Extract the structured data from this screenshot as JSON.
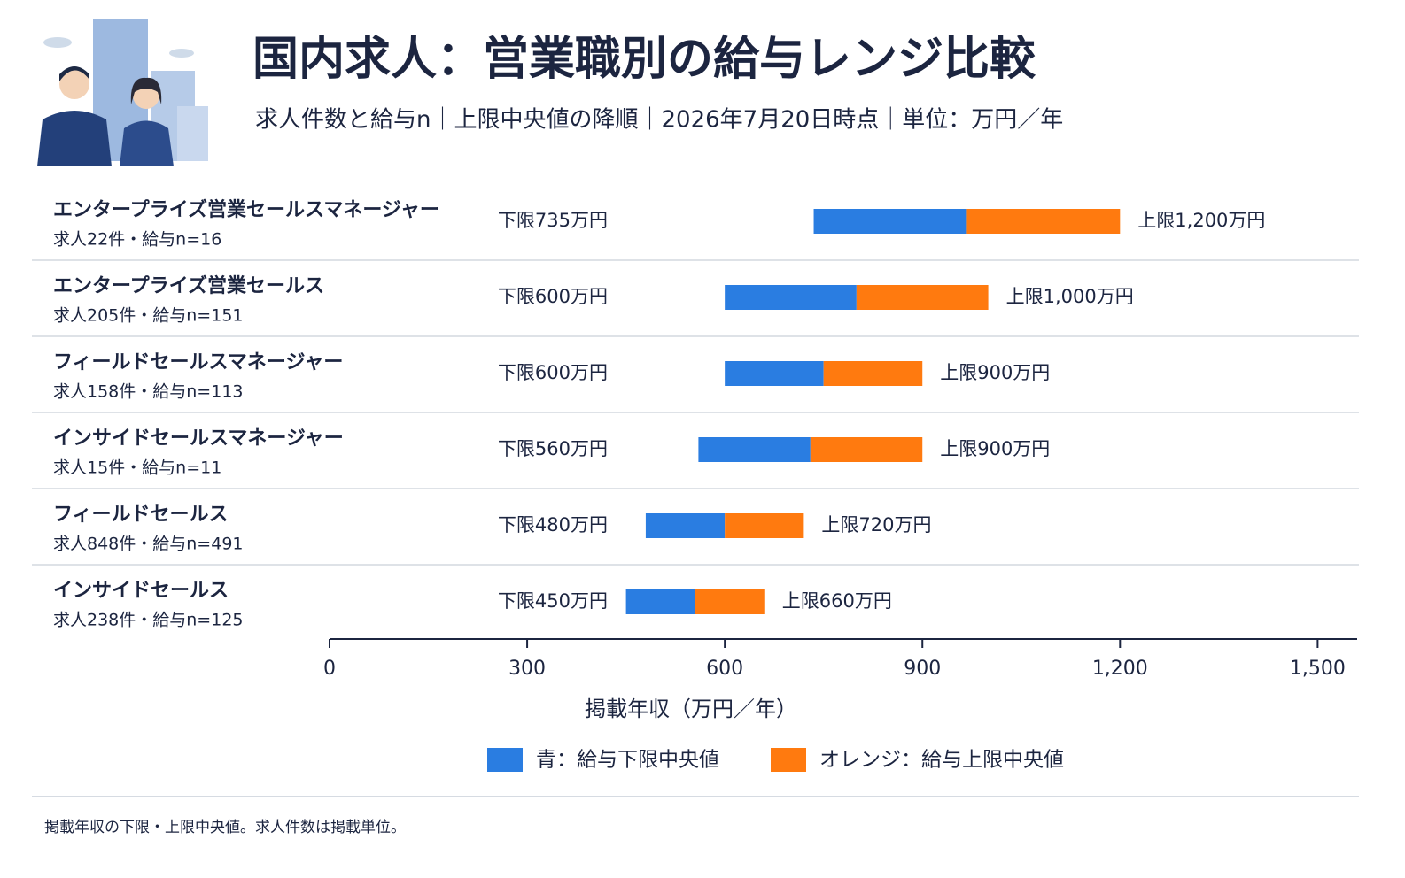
{
  "chart_data": {
    "type": "range-bar",
    "title": "国内求人：営業職別の給与レンジ比較",
    "subtitle": "求人件数と給与n｜上限中央値の降順｜2026年7月20日時点｜単位：万円／年",
    "categories": [
      "エンタープライズ営業セールスマネージャー",
      "エンタープライズ営業セールス",
      "フィールドセールスマネージャー",
      "インサイドセールスマネージャー",
      "フィールドセールス",
      "インサイドセールス"
    ],
    "category_details": [
      "求人22件・給与n=16",
      "求人205件・給与n=151",
      "求人158件・給与n=113",
      "求人15件・給与n=11",
      "求人848件・給与n=491",
      "求人238件・給与n=125"
    ],
    "series": [
      {
        "name": "青：給与下限中央値",
        "color": "#2a7de1",
        "values": [
          735,
          600,
          600,
          560,
          480,
          450
        ],
        "value_labels": [
          "下限735万円",
          "下限600万円",
          "下限600万円",
          "下限560万円",
          "下限480万円",
          "下限450万円"
        ]
      },
      {
        "name": "オレンジ：給与上限中央値",
        "color": "#ff7a0f",
        "values": [
          1200,
          1000,
          900,
          900,
          720,
          660
        ],
        "value_labels": [
          "上限1,200万円",
          "上限1,000万円",
          "上限900万円",
          "上限900万円",
          "上限720万円",
          "上限660万円"
        ]
      }
    ],
    "xlabel": "掲載年収（万円／年）",
    "xlim": [
      0,
      1560
    ],
    "xticks": [
      0,
      300,
      600,
      900,
      {
        "value": 1200,
        "label": "1,200"
      },
      {
        "value": 1500,
        "label": "1,500"
      }
    ],
    "footnote": "掲載年収の下限・上限中央値。求人件数は掲載単位。"
  }
}
